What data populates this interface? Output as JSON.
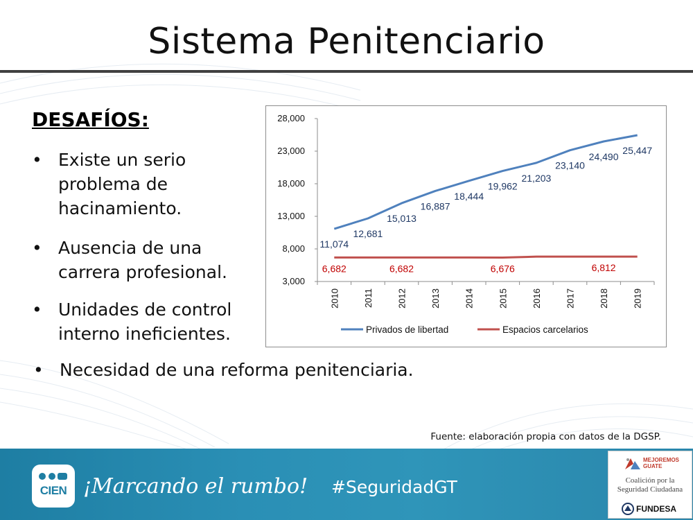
{
  "title": "Sistema Penitenciario",
  "section_heading": "DESAFÍOS:",
  "bullets": [
    [
      "Existe un serio",
      "problema de",
      "hacinamiento."
    ],
    [
      "Ausencia de una",
      "carrera profesional."
    ],
    [
      "Unidades de control",
      "interno ineficientes."
    ],
    [
      "Necesidad de una reforma penitenciaria."
    ]
  ],
  "bullet_symbol": "•",
  "source_note": "Fuente: elaboración propia con datos de la DGSP.",
  "footer": {
    "logo_text": "CIEN",
    "tagline": "¡Marcando el rumbo!",
    "hashtag": "#SeguridadGT",
    "partner_top": "MEJOREMOS GUATE",
    "partner_name": [
      "Coalición por la",
      "Seguridad Ciudadana"
    ],
    "partner_bottom": "FUNDESA"
  },
  "chart_data": {
    "type": "line",
    "x": [
      "2010",
      "2011",
      "2012",
      "2013",
      "2014",
      "2015",
      "2016",
      "2017",
      "2018",
      "2019"
    ],
    "ylim": [
      3000,
      28000
    ],
    "yticks": [
      3000,
      8000,
      13000,
      18000,
      23000,
      28000
    ],
    "ytick_labels": [
      "3,000",
      "8,000",
      "13,000",
      "18,000",
      "23,000",
      "28,000"
    ],
    "legend_position": "bottom",
    "grid": false,
    "series": [
      {
        "name": "Privados de libertad",
        "color": "#4f81bd",
        "label_color": "#1f3864",
        "values": [
          11074,
          12681,
          15013,
          16887,
          18444,
          19962,
          21203,
          23140,
          24490,
          25447
        ],
        "labels": [
          "11,074",
          "12,681",
          "15,013",
          "16,887",
          "18,444",
          "19,962",
          "21,203",
          "23,140",
          "24,490",
          "25,447"
        ]
      },
      {
        "name": "Espacios carcelarios",
        "color": "#c0504d",
        "label_color": "#c00000",
        "values": [
          6682,
          6682,
          6682,
          6682,
          6682,
          6676,
          6812,
          6812,
          6812,
          6812
        ],
        "labels": [
          "6,682",
          "",
          "6,682",
          "",
          "",
          "6,676",
          "",
          "",
          "6,812",
          ""
        ]
      }
    ]
  }
}
